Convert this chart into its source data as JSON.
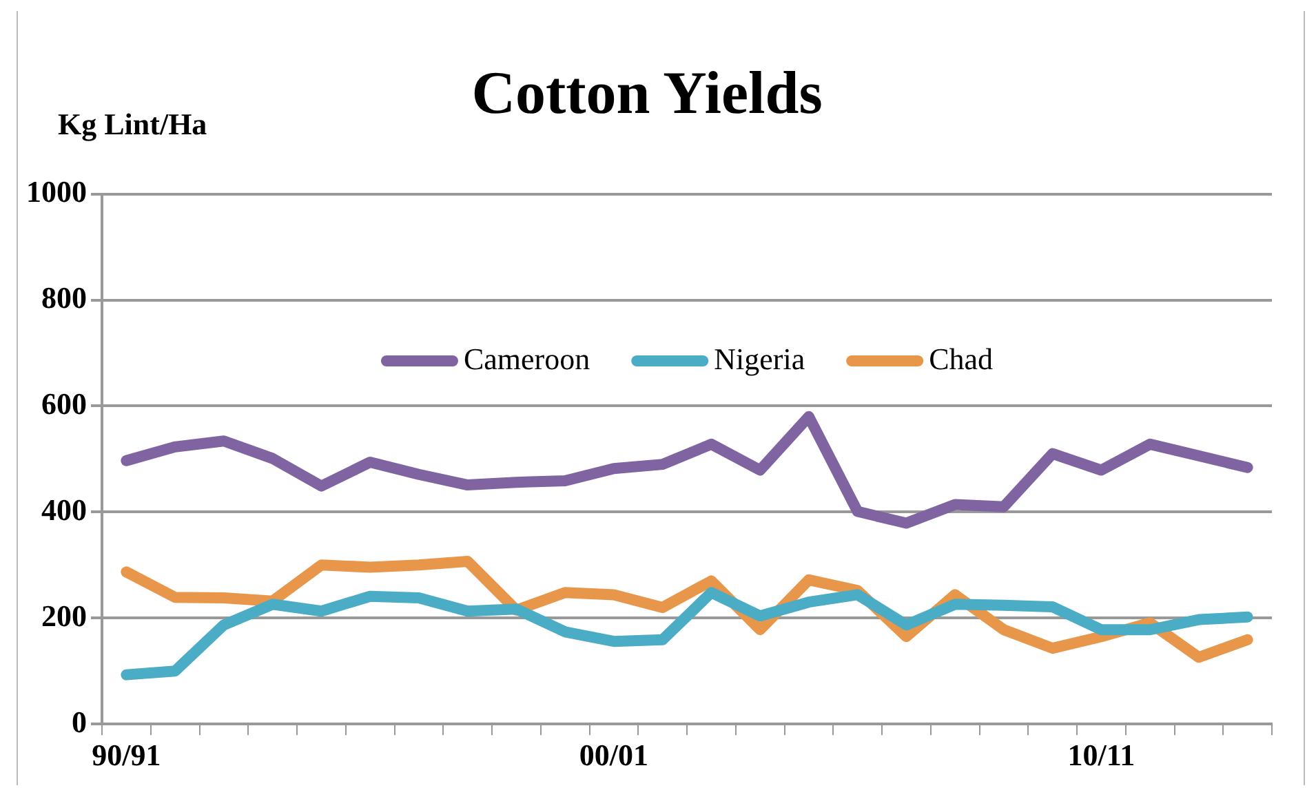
{
  "chart_data": {
    "type": "line",
    "title": "Cotton Yields",
    "ylabel": "Kg Lint/Ha",
    "categories": [
      "90/91",
      null,
      null,
      null,
      null,
      null,
      null,
      null,
      null,
      null,
      "00/01",
      null,
      null,
      null,
      null,
      null,
      null,
      null,
      null,
      null,
      "10/11",
      null,
      null,
      null
    ],
    "series": [
      {
        "name": "Cameroon",
        "color": "#8064a2",
        "values": [
          497,
          523,
          534,
          501,
          449,
          494,
          471,
          451,
          456,
          459,
          482,
          490,
          528,
          479,
          580,
          401,
          379,
          414,
          410,
          510,
          479,
          528,
          506,
          484
        ]
      },
      {
        "name": "Nigeria",
        "color": "#4bacc6",
        "values": [
          93,
          100,
          187,
          226,
          213,
          241,
          238,
          213,
          217,
          174,
          156,
          159,
          248,
          204,
          230,
          244,
          187,
          226,
          224,
          221,
          178,
          178,
          197,
          202
        ]
      },
      {
        "name": "Chad",
        "color": "#e8964a",
        "values": [
          287,
          239,
          238,
          232,
          300,
          296,
          300,
          307,
          215,
          248,
          244,
          220,
          270,
          178,
          272,
          252,
          165,
          244,
          178,
          143,
          165,
          191,
          126,
          159
        ]
      }
    ],
    "ylim": [
      0,
      1000
    ],
    "yticks": [
      0,
      200,
      400,
      600,
      800,
      1000
    ],
    "grid": "y",
    "legend": "top",
    "marker": "none",
    "line_style": "solid"
  }
}
